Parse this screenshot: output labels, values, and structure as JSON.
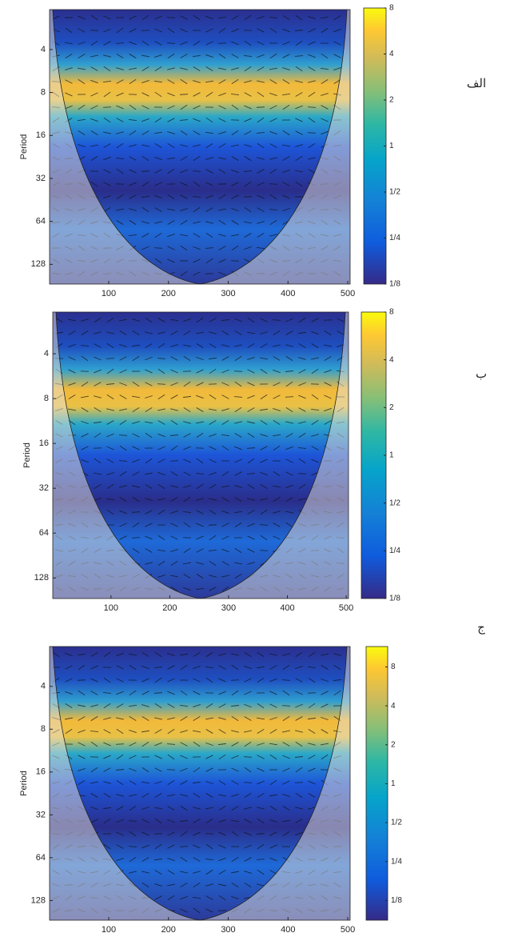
{
  "chart_data": [
    {
      "type": "heatmap",
      "panel_label": "الف",
      "ylabel": "Period",
      "xlim": [
        1,
        504
      ],
      "xticks": [
        100,
        200,
        300,
        400,
        500
      ],
      "ylim": [
        2.1,
        176
      ],
      "yticks": [
        4,
        8,
        16,
        32,
        64,
        128
      ],
      "log_y": true,
      "y_inverted": true,
      "colorbar": {
        "clim": [
          0.125,
          8
        ],
        "log": true,
        "ticks": [
          8,
          4,
          2,
          1,
          {
            "value": 0.5,
            "label": "1/2"
          },
          {
            "value": 0.25,
            "label": "1/4"
          },
          {
            "value": 0.125,
            "label": "1/8"
          }
        ]
      }
    },
    {
      "type": "heatmap",
      "panel_label": "ب",
      "ylabel": "Period",
      "xlim": [
        1,
        504
      ],
      "xticks": [
        100,
        200,
        300,
        400,
        500
      ],
      "ylim": [
        2.1,
        176
      ],
      "yticks": [
        4,
        8,
        16,
        32,
        64,
        128
      ],
      "log_y": true,
      "y_inverted": true,
      "colorbar": {
        "clim": [
          0.125,
          8
        ],
        "log": true,
        "ticks": [
          8,
          4,
          2,
          1,
          {
            "value": 0.5,
            "label": "1/2"
          },
          {
            "value": 0.25,
            "label": "1/4"
          },
          {
            "value": 0.125,
            "label": "1/8"
          }
        ]
      }
    },
    {
      "type": "heatmap",
      "panel_label": "ج",
      "ylabel": "Period",
      "xlim": [
        1,
        504
      ],
      "xticks": [
        100,
        200,
        300,
        400,
        500
      ],
      "ylim": [
        2.1,
        176
      ],
      "yticks": [
        4,
        8,
        16,
        32,
        64,
        128
      ],
      "log_y": true,
      "y_inverted": true,
      "colorbar": {
        "clim": [
          0.088,
          11.5
        ],
        "log": true,
        "ticks": [
          8,
          4,
          2,
          1,
          {
            "value": 0.5,
            "label": "1/2"
          },
          {
            "value": 0.25,
            "label": "1/4"
          },
          {
            "value": 0.125,
            "label": "1/8"
          }
        ]
      }
    }
  ]
}
